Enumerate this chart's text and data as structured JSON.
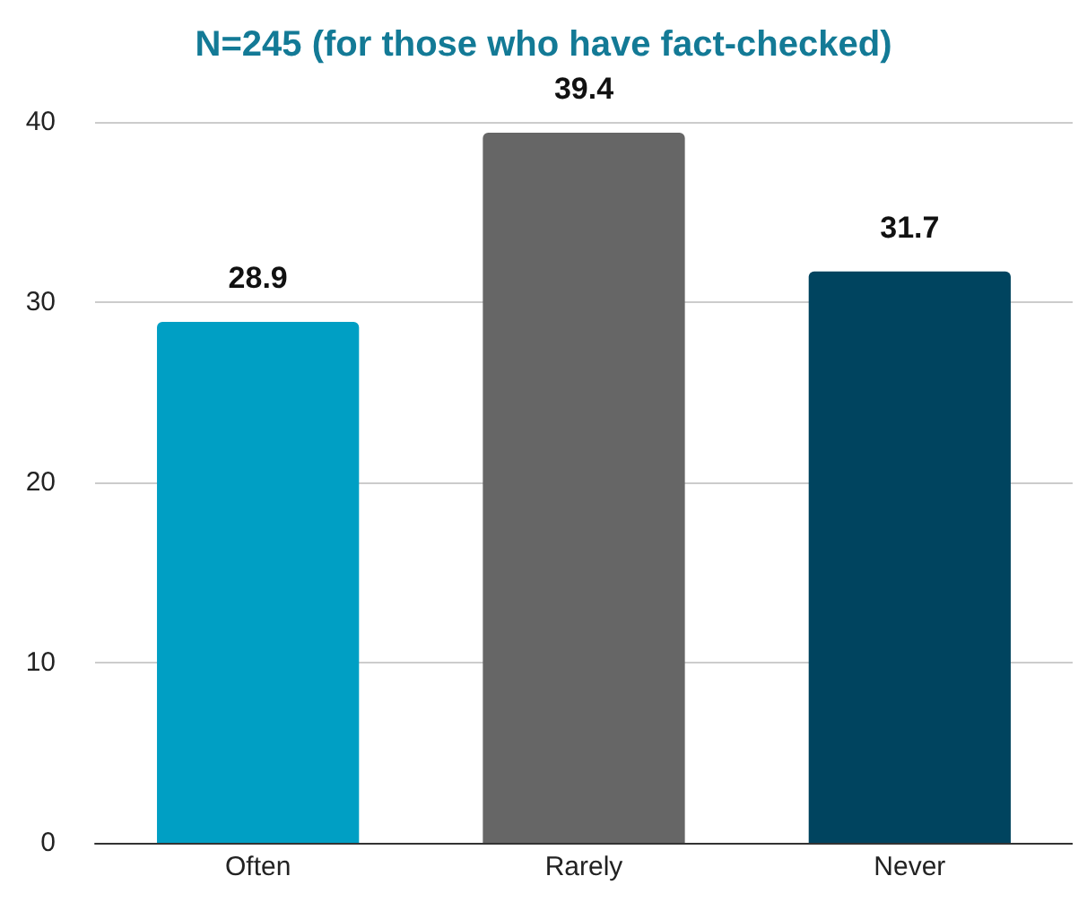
{
  "chart_data": {
    "type": "bar",
    "title": "N=245 (for those who have fact-checked)",
    "categories": [
      "Often",
      "Rarely",
      "Never"
    ],
    "values": [
      28.9,
      39.4,
      31.7
    ],
    "colors": [
      "#009fc4",
      "#666666",
      "#00445f"
    ],
    "ylim": [
      0,
      40
    ],
    "yticks": [
      0,
      10,
      20,
      30,
      40
    ],
    "grid": "y",
    "data_labels": true
  }
}
